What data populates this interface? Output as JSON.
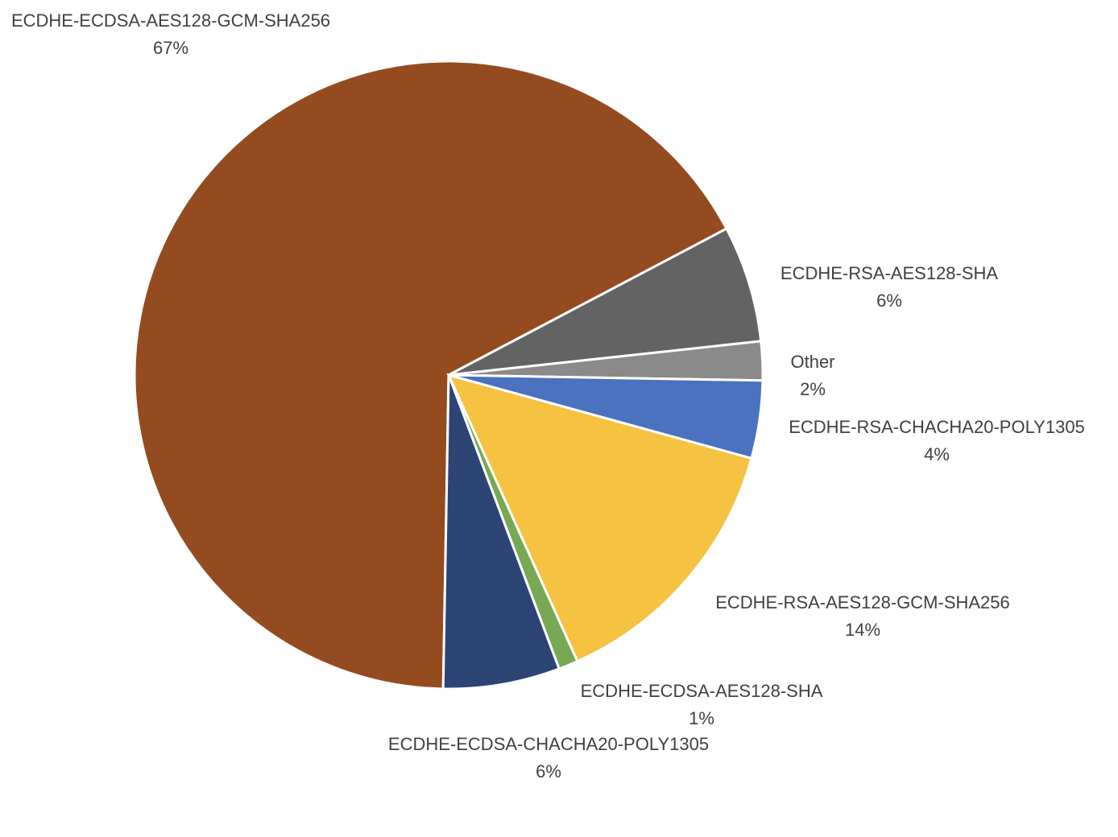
{
  "chart_data": {
    "type": "pie",
    "categories": [
      "ECDHE-ECDSA-AES128-GCM-SHA256",
      "ECDHE-RSA-AES128-SHA",
      "Other",
      "ECDHE-RSA-CHACHA20-POLY1305",
      "ECDHE-RSA-AES128-GCM-SHA256",
      "ECDHE-ECDSA-AES128-SHA",
      "ECDHE-ECDSA-CHACHA20-POLY1305"
    ],
    "values": [
      67,
      6,
      2,
      4,
      14,
      1,
      6
    ],
    "value_labels": [
      "67%",
      "6%",
      "2%",
      "4%",
      "14%",
      "1%",
      "6%"
    ],
    "colors": [
      "#954b20",
      "#636363",
      "#8a8a8a",
      "#4a72bf",
      "#f5c242",
      "#77a853",
      "#2c4574"
    ]
  }
}
